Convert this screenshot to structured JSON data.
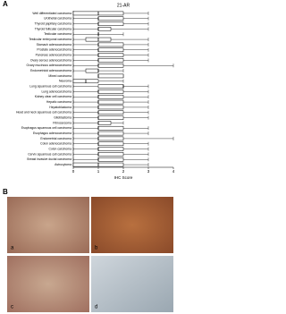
{
  "panel_labels": [
    "A",
    "B"
  ],
  "chart_data": {
    "type": "boxplot",
    "title": "21-AR",
    "x_label": "IHC Score",
    "categories": [
      "Well differentiated carcinoma",
      "Urothelial carcinoma",
      "Thyroid papillary carcinoma",
      "Thyroid follicular carcinoma",
      "Testicular carcinoma",
      "Testicular embryonal carcinoma",
      "Stomach adenocarcinoma",
      "Prostate adenocarcinoma",
      "Pancreas adenocarcinoma",
      "Ovary serous adenocarcinoma",
      "Ovary mucinous adenocarcinoma",
      "Endometrioid adenocarcinoma",
      "Mixed carcinoma",
      "Neuroma",
      "Lung squamous cell carcinoma",
      "Lung adenocarcinoma",
      "Kidney clear cell carcinoma",
      "Hepatic carcinoma",
      "Hepatoblastoma",
      "Head and neck squamous cell carcinoma",
      "Glioblastoma",
      "Fibrosarcoma",
      "Esophagus squamous cell carcinoma",
      "Esophagus adenocarcinoma",
      "Endometrial carcinoma",
      "Colon adenocarcinoma",
      "Colon carcinoma",
      "Cervix squamous cell carcinoma",
      "Breast invasive ductal carcinoma",
      "Astrocytoma"
    ],
    "min": [
      0,
      0,
      0,
      0,
      0,
      0,
      0,
      0,
      0,
      0,
      0,
      0,
      1,
      0,
      0,
      0,
      0,
      0,
      0,
      0,
      0,
      0,
      0,
      0,
      0,
      0,
      0,
      0,
      0,
      0
    ],
    "q1": [
      0,
      1,
      1,
      1,
      1,
      0.5,
      1,
      1,
      1,
      1,
      1,
      0.5,
      1,
      0,
      1,
      1,
      1,
      1,
      1,
      1,
      1,
      1,
      1,
      1,
      1,
      1,
      1,
      1,
      1,
      0
    ],
    "median": [
      1,
      1,
      1,
      1,
      1,
      1,
      1,
      1,
      1,
      1,
      1,
      1,
      1,
      0.5,
      2,
      1,
      1,
      1,
      1,
      1,
      1,
      1,
      1,
      1,
      1,
      1,
      1,
      1,
      1,
      1
    ],
    "q3": [
      2,
      2,
      2,
      1.5,
      1,
      1.5,
      2,
      2,
      2,
      2,
      2,
      1,
      2,
      1,
      2,
      2,
      2,
      2,
      2,
      2,
      2,
      1.5,
      2,
      2,
      2,
      2,
      2,
      2,
      2,
      2
    ],
    "max": [
      3,
      3,
      3,
      3,
      2,
      3,
      3,
      3,
      3,
      3,
      4,
      2,
      2,
      2,
      3,
      3,
      3,
      3,
      3,
      3,
      3,
      2,
      3,
      3,
      4,
      3,
      3,
      3,
      3,
      3
    ],
    "xlim": [
      0,
      4
    ],
    "xticks": [
      0,
      1,
      2,
      3,
      4
    ],
    "color": "#ffffff"
  },
  "images": [
    "a",
    "b",
    "c",
    "d"
  ]
}
